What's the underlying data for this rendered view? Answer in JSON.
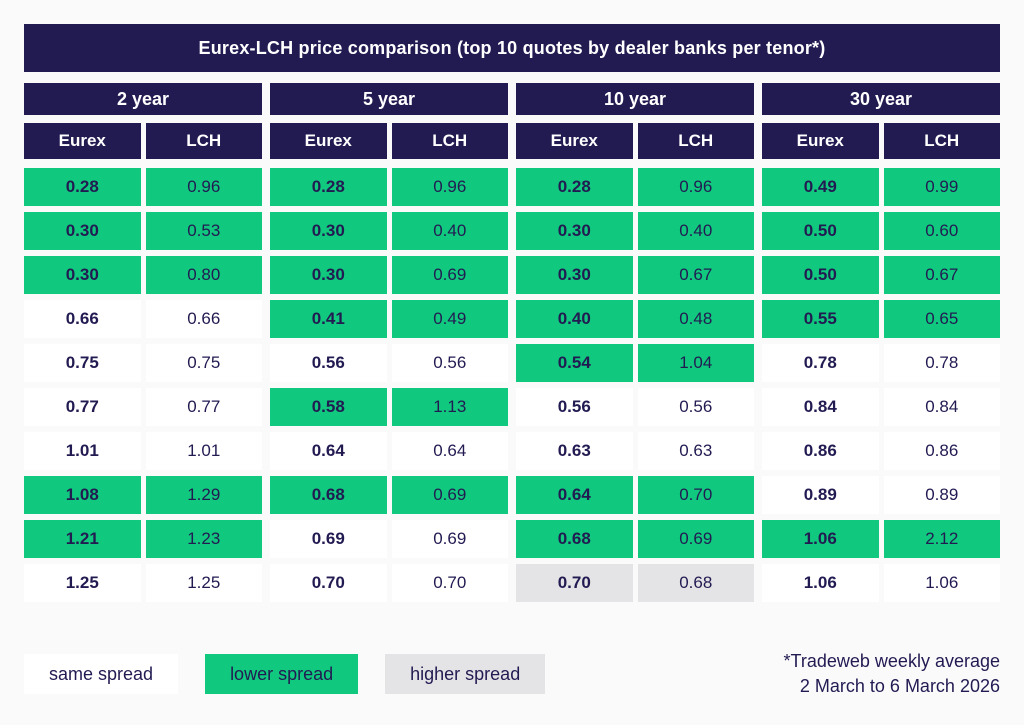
{
  "title": "Eurex-LCH price comparison (top 10 quotes by dealer banks per tenor*)",
  "chart_data": {
    "type": "table",
    "title": "Eurex-LCH price comparison (top 10 quotes by dealer banks per tenor*)",
    "venue_headers": [
      "Eurex",
      "LCH"
    ],
    "status_meaning": {
      "same": "same spread",
      "lower": "lower spread",
      "higher": "higher spread"
    },
    "tenors": [
      {
        "label": "2 year",
        "rows": [
          {
            "eurex": "0.28",
            "lch": "0.96",
            "status": "lower"
          },
          {
            "eurex": "0.30",
            "lch": "0.53",
            "status": "lower"
          },
          {
            "eurex": "0.30",
            "lch": "0.80",
            "status": "lower"
          },
          {
            "eurex": "0.66",
            "lch": "0.66",
            "status": "same"
          },
          {
            "eurex": "0.75",
            "lch": "0.75",
            "status": "same"
          },
          {
            "eurex": "0.77",
            "lch": "0.77",
            "status": "same"
          },
          {
            "eurex": "1.01",
            "lch": "1.01",
            "status": "same"
          },
          {
            "eurex": "1.08",
            "lch": "1.29",
            "status": "lower"
          },
          {
            "eurex": "1.21",
            "lch": "1.23",
            "status": "lower"
          },
          {
            "eurex": "1.25",
            "lch": "1.25",
            "status": "same"
          }
        ]
      },
      {
        "label": "5 year",
        "rows": [
          {
            "eurex": "0.28",
            "lch": "0.96",
            "status": "lower"
          },
          {
            "eurex": "0.30",
            "lch": "0.40",
            "status": "lower"
          },
          {
            "eurex": "0.30",
            "lch": "0.69",
            "status": "lower"
          },
          {
            "eurex": "0.41",
            "lch": "0.49",
            "status": "lower"
          },
          {
            "eurex": "0.56",
            "lch": "0.56",
            "status": "same"
          },
          {
            "eurex": "0.58",
            "lch": "1.13",
            "status": "lower"
          },
          {
            "eurex": "0.64",
            "lch": "0.64",
            "status": "same"
          },
          {
            "eurex": "0.68",
            "lch": "0.69",
            "status": "lower"
          },
          {
            "eurex": "0.69",
            "lch": "0.69",
            "status": "same"
          },
          {
            "eurex": "0.70",
            "lch": "0.70",
            "status": "same"
          }
        ]
      },
      {
        "label": "10 year",
        "rows": [
          {
            "eurex": "0.28",
            "lch": "0.96",
            "status": "lower"
          },
          {
            "eurex": "0.30",
            "lch": "0.40",
            "status": "lower"
          },
          {
            "eurex": "0.30",
            "lch": "0.67",
            "status": "lower"
          },
          {
            "eurex": "0.40",
            "lch": "0.48",
            "status": "lower"
          },
          {
            "eurex": "0.54",
            "lch": "1.04",
            "status": "lower"
          },
          {
            "eurex": "0.56",
            "lch": "0.56",
            "status": "same"
          },
          {
            "eurex": "0.63",
            "lch": "0.63",
            "status": "same"
          },
          {
            "eurex": "0.64",
            "lch": "0.70",
            "status": "lower"
          },
          {
            "eurex": "0.68",
            "lch": "0.69",
            "status": "lower"
          },
          {
            "eurex": "0.70",
            "lch": "0.68",
            "status": "higher"
          }
        ]
      },
      {
        "label": "30 year",
        "rows": [
          {
            "eurex": "0.49",
            "lch": "0.99",
            "status": "lower"
          },
          {
            "eurex": "0.50",
            "lch": "0.60",
            "status": "lower"
          },
          {
            "eurex": "0.50",
            "lch": "0.67",
            "status": "lower"
          },
          {
            "eurex": "0.55",
            "lch": "0.65",
            "status": "lower"
          },
          {
            "eurex": "0.78",
            "lch": "0.78",
            "status": "same"
          },
          {
            "eurex": "0.84",
            "lch": "0.84",
            "status": "same"
          },
          {
            "eurex": "0.86",
            "lch": "0.86",
            "status": "same"
          },
          {
            "eurex": "0.89",
            "lch": "0.89",
            "status": "same"
          },
          {
            "eurex": "1.06",
            "lch": "2.12",
            "status": "lower"
          },
          {
            "eurex": "1.06",
            "lch": "1.06",
            "status": "same"
          }
        ]
      }
    ]
  },
  "legend": [
    {
      "label": "same spread",
      "status": "same"
    },
    {
      "label": "lower spread",
      "status": "lower"
    },
    {
      "label": "higher spread",
      "status": "higher"
    }
  ],
  "footnote": {
    "line1": "*Tradeweb weekly average",
    "line2": "2 March to 6 March 2026"
  },
  "colors": {
    "header_bg": "#221b52",
    "text_dark": "#221b52",
    "lower_spread_bg": "#10c97e",
    "same_spread_bg": "#ffffff",
    "higher_spread_bg": "#e4e4e6",
    "page_bg": "#fafafb"
  }
}
